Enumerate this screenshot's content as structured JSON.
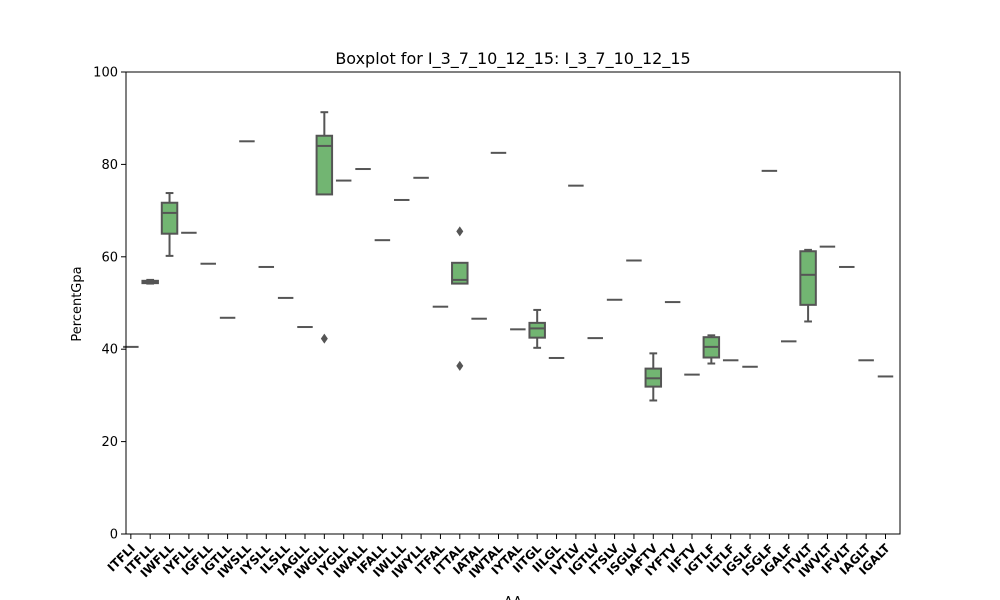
{
  "chart_data": {
    "type": "boxplot",
    "title": "Boxplot for I_3_7_10_12_15: I_3_7_10_12_15",
    "xlabel": "AA",
    "ylabel": "PercentGpa",
    "ylim": [
      0,
      100
    ],
    "yticks": [
      0,
      20,
      40,
      60,
      80,
      100
    ],
    "grid": false,
    "box_color": "#72b572",
    "edge_color": "#555555",
    "categories": [
      "ITFLI",
      "ITFLL",
      "IWFLL",
      "IYFLL",
      "IGFLL",
      "IGTLL",
      "IWSLL",
      "IYSLL",
      "ILSLL",
      "IAGLL",
      "IWGLL",
      "IYGLL",
      "IWALL",
      "IFALL",
      "IWLLL",
      "IWYLL",
      "ITFAL",
      "ITTAL",
      "IATAL",
      "IWTAL",
      "IYTAL",
      "IITGL",
      "IILGL",
      "IVTLV",
      "IGTLV",
      "ITSLV",
      "ISGLV",
      "IAFTV",
      "IYFTV",
      "IIFTV",
      "IGTLF",
      "ILTLF",
      "IGSLF",
      "ISGLF",
      "IGALF",
      "ITVLT",
      "IWVLT",
      "IFVLT",
      "IAGLT",
      "IGALT"
    ],
    "boxes": [
      {
        "min": 40.5,
        "q1": 40.5,
        "median": 40.5,
        "q3": 40.5,
        "max": 40.5,
        "outliers": []
      },
      {
        "min": 54.2,
        "q1": 54.3,
        "median": 54.5,
        "q3": 54.8,
        "max": 55.0,
        "outliers": []
      },
      {
        "min": 60.2,
        "q1": 65.0,
        "median": 69.5,
        "q3": 71.7,
        "max": 73.8,
        "outliers": []
      },
      {
        "min": 65.2,
        "q1": 65.2,
        "median": 65.2,
        "q3": 65.2,
        "max": 65.2,
        "outliers": []
      },
      {
        "min": 58.5,
        "q1": 58.5,
        "median": 58.5,
        "q3": 58.5,
        "max": 58.5,
        "outliers": []
      },
      {
        "min": 46.8,
        "q1": 46.8,
        "median": 46.8,
        "q3": 46.8,
        "max": 46.8,
        "outliers": []
      },
      {
        "min": 85.0,
        "q1": 85.0,
        "median": 85.0,
        "q3": 85.0,
        "max": 85.0,
        "outliers": []
      },
      {
        "min": 57.8,
        "q1": 57.8,
        "median": 57.8,
        "q3": 57.8,
        "max": 57.8,
        "outliers": []
      },
      {
        "min": 51.1,
        "q1": 51.1,
        "median": 51.1,
        "q3": 51.1,
        "max": 51.1,
        "outliers": []
      },
      {
        "min": 44.8,
        "q1": 44.8,
        "median": 44.8,
        "q3": 44.8,
        "max": 44.8,
        "outliers": []
      },
      {
        "min": 73.5,
        "q1": 73.5,
        "median": 84.0,
        "q3": 86.2,
        "max": 91.3,
        "outliers": [
          42.3
        ]
      },
      {
        "min": 76.5,
        "q1": 76.5,
        "median": 76.5,
        "q3": 76.5,
        "max": 76.5,
        "outliers": []
      },
      {
        "min": 79.0,
        "q1": 79.0,
        "median": 79.0,
        "q3": 79.0,
        "max": 79.0,
        "outliers": []
      },
      {
        "min": 63.6,
        "q1": 63.6,
        "median": 63.6,
        "q3": 63.6,
        "max": 63.6,
        "outliers": []
      },
      {
        "min": 72.3,
        "q1": 72.3,
        "median": 72.3,
        "q3": 72.3,
        "max": 72.3,
        "outliers": []
      },
      {
        "min": 77.1,
        "q1": 77.1,
        "median": 77.1,
        "q3": 77.1,
        "max": 77.1,
        "outliers": []
      },
      {
        "min": 49.2,
        "q1": 49.2,
        "median": 49.2,
        "q3": 49.2,
        "max": 49.2,
        "outliers": []
      },
      {
        "min": 54.2,
        "q1": 54.2,
        "median": 55.0,
        "q3": 58.7,
        "max": 58.7,
        "outliers": [
          65.5,
          36.4
        ]
      },
      {
        "min": 46.6,
        "q1": 46.6,
        "median": 46.6,
        "q3": 46.6,
        "max": 46.6,
        "outliers": []
      },
      {
        "min": 82.5,
        "q1": 82.5,
        "median": 82.5,
        "q3": 82.5,
        "max": 82.5,
        "outliers": []
      },
      {
        "min": 44.3,
        "q1": 44.3,
        "median": 44.3,
        "q3": 44.3,
        "max": 44.3,
        "outliers": []
      },
      {
        "min": 40.3,
        "q1": 42.5,
        "median": 44.5,
        "q3": 45.7,
        "max": 48.5,
        "outliers": []
      },
      {
        "min": 38.1,
        "q1": 38.1,
        "median": 38.1,
        "q3": 38.1,
        "max": 38.1,
        "outliers": []
      },
      {
        "min": 75.4,
        "q1": 75.4,
        "median": 75.4,
        "q3": 75.4,
        "max": 75.4,
        "outliers": []
      },
      {
        "min": 42.4,
        "q1": 42.4,
        "median": 42.4,
        "q3": 42.4,
        "max": 42.4,
        "outliers": []
      },
      {
        "min": 50.7,
        "q1": 50.7,
        "median": 50.7,
        "q3": 50.7,
        "max": 50.7,
        "outliers": []
      },
      {
        "min": 59.2,
        "q1": 59.2,
        "median": 59.2,
        "q3": 59.2,
        "max": 59.2,
        "outliers": []
      },
      {
        "min": 28.9,
        "q1": 31.9,
        "median": 33.7,
        "q3": 35.8,
        "max": 39.1,
        "outliers": []
      },
      {
        "min": 50.2,
        "q1": 50.2,
        "median": 50.2,
        "q3": 50.2,
        "max": 50.2,
        "outliers": []
      },
      {
        "min": 34.5,
        "q1": 34.5,
        "median": 34.5,
        "q3": 34.5,
        "max": 34.5,
        "outliers": []
      },
      {
        "min": 36.9,
        "q1": 38.2,
        "median": 40.5,
        "q3": 42.6,
        "max": 43.0,
        "outliers": []
      },
      {
        "min": 37.6,
        "q1": 37.6,
        "median": 37.6,
        "q3": 37.6,
        "max": 37.6,
        "outliers": []
      },
      {
        "min": 36.2,
        "q1": 36.2,
        "median": 36.2,
        "q3": 36.2,
        "max": 36.2,
        "outliers": []
      },
      {
        "min": 78.6,
        "q1": 78.6,
        "median": 78.6,
        "q3": 78.6,
        "max": 78.6,
        "outliers": []
      },
      {
        "min": 41.7,
        "q1": 41.7,
        "median": 41.7,
        "q3": 41.7,
        "max": 41.7,
        "outliers": []
      },
      {
        "min": 46.0,
        "q1": 49.6,
        "median": 56.1,
        "q3": 61.2,
        "max": 61.5,
        "outliers": []
      },
      {
        "min": 62.2,
        "q1": 62.2,
        "median": 62.2,
        "q3": 62.2,
        "max": 62.2,
        "outliers": []
      },
      {
        "min": 57.8,
        "q1": 57.8,
        "median": 57.8,
        "q3": 57.8,
        "max": 57.8,
        "outliers": []
      },
      {
        "min": 37.6,
        "q1": 37.6,
        "median": 37.6,
        "q3": 37.6,
        "max": 37.6,
        "outliers": []
      },
      {
        "min": 34.1,
        "q1": 34.1,
        "median": 34.1,
        "q3": 34.1,
        "max": 34.1,
        "outliers": []
      }
    ]
  }
}
